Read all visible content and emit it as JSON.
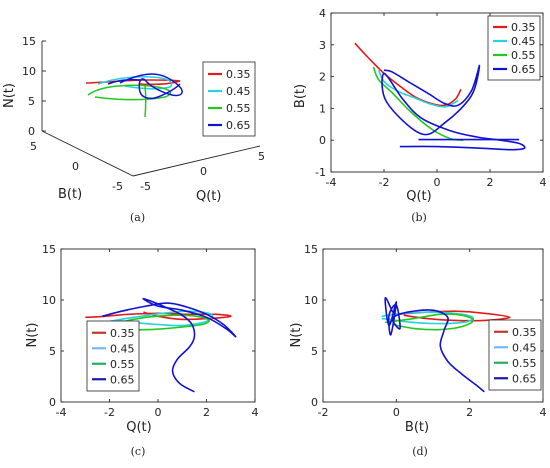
{
  "colors": {
    "s035": "#e31a1c",
    "s045": "#22d3e0",
    "s055": "#22c81e",
    "s065": "#1111d4",
    "s035c": "#c0392b",
    "s045c": "#74b9ff",
    "s055c": "#27ae60",
    "s065c": "#1a1aaa"
  },
  "chart_data": [
    {
      "id": "a",
      "type": "line",
      "projection": "3d",
      "caption": "(a)",
      "xlabel": "B(t)",
      "ylabel": "Q(t)",
      "zlabel": "N(t)",
      "z_ticks": [
        "0",
        "5",
        "10",
        "15"
      ],
      "b_ticks": [
        "5",
        "0",
        "-5"
      ],
      "q_ticks": [
        "-5",
        "0",
        "5"
      ],
      "series": [
        {
          "name": "0.35",
          "color": "s035"
        },
        {
          "name": "0.45",
          "color": "s045"
        },
        {
          "name": "0.55",
          "color": "s055"
        },
        {
          "name": "0.65",
          "color": "s065"
        }
      ]
    },
    {
      "id": "b",
      "type": "line",
      "caption": "(b)",
      "xlabel": "Q(t)",
      "ylabel": "B(t)",
      "xlim": [
        -4,
        4
      ],
      "ylim": [
        -1,
        4
      ],
      "xticks": [
        "-4",
        "-2",
        "0",
        "2",
        "4"
      ],
      "yticks": [
        "-1",
        "0",
        "1",
        "2",
        "3",
        "4"
      ],
      "series": [
        {
          "name": "0.35",
          "color": "s035",
          "x": [
            -3.1,
            -2.6,
            -2.0,
            -1.4,
            -0.8,
            -0.2,
            0.3,
            0.7,
            0.9
          ],
          "y": [
            3.05,
            2.6,
            2.1,
            1.7,
            1.35,
            1.15,
            1.1,
            1.3,
            1.6
          ]
        },
        {
          "name": "0.45",
          "color": "s045",
          "x": [
            -2.2,
            -2.0,
            -1.5,
            -0.9,
            -0.3,
            0.3,
            0.8
          ],
          "y": [
            2.2,
            1.85,
            1.55,
            1.35,
            1.15,
            1.05,
            1.25
          ]
        },
        {
          "name": "0.55",
          "color": "s055",
          "x": [
            -2.4,
            -2.2,
            -1.7,
            -1.0,
            -0.2,
            0.5,
            1.0
          ],
          "y": [
            2.3,
            1.9,
            1.5,
            0.9,
            0.35,
            0.05,
            0.0
          ]
        },
        {
          "name": "0.65",
          "color": "s065",
          "x": [
            -2.0,
            -1.7,
            -1.0,
            -0.3,
            0.3,
            0.8,
            1.3,
            1.6,
            1.3,
            0.3,
            -0.6,
            -1.9,
            -2.0,
            -1.3,
            -0.6,
            0.5,
            1.5,
            2.4,
            3.1,
            3.3,
            2.8,
            1.6,
            0.0,
            -1.4
          ],
          "y": [
            2.2,
            2.15,
            1.8,
            1.45,
            1.15,
            1.1,
            1.55,
            2.35,
            1.4,
            0.55,
            0.2,
            1.2,
            2.1,
            1.3,
            0.7,
            0.3,
            0.1,
            0.0,
            -0.1,
            -0.25,
            -0.3,
            -0.25,
            -0.2,
            -0.2
          ]
        }
      ],
      "extra_segment": {
        "color": "s065",
        "x": [
          -0.7,
          3.1
        ],
        "y": [
          0.02,
          0.02
        ]
      }
    },
    {
      "id": "c",
      "type": "line",
      "caption": "(c)",
      "xlabel": "Q(t)",
      "ylabel": "N(t)",
      "xlim": [
        -4,
        4
      ],
      "ylim": [
        0,
        15
      ],
      "xticks": [
        "-4",
        "-2",
        "0",
        "2",
        "4"
      ],
      "yticks": [
        "0",
        "5",
        "10",
        "15"
      ],
      "legend_colors": [
        "s035c",
        "s045c",
        "s055c",
        "s065c"
      ],
      "series": [
        {
          "name": "0.35",
          "color": "s035",
          "x": [
            -3.0,
            -2.2,
            -1.2,
            0.0,
            1.2,
            2.4,
            3.0,
            2.2,
            1.0,
            0.0,
            -0.6
          ],
          "y": [
            8.3,
            8.4,
            8.6,
            8.7,
            8.6,
            8.6,
            8.4,
            8.2,
            8.1,
            8.4,
            8.8
          ]
        },
        {
          "name": "0.45",
          "color": "s045",
          "x": [
            -2.0,
            -1.0,
            0.2,
            1.3,
            2.2,
            2.0,
            1.0,
            0.0,
            -1.0,
            -1.6
          ],
          "y": [
            7.9,
            8.3,
            8.7,
            8.9,
            8.6,
            7.9,
            7.5,
            7.6,
            7.8,
            8.0
          ]
        },
        {
          "name": "0.55",
          "color": "s055",
          "x": [
            -2.4,
            -1.6,
            -0.5,
            0.6,
            1.6,
            2.1,
            1.8,
            0.8,
            -0.3,
            -1.2,
            -2.0
          ],
          "y": [
            7.3,
            7.8,
            8.3,
            8.5,
            8.4,
            8.0,
            7.6,
            7.3,
            7.1,
            7.1,
            7.3
          ]
        },
        {
          "name": "0.65",
          "color": "s065",
          "x": [
            -2.3,
            -1.5,
            -0.5,
            0.4,
            1.2,
            2.0,
            2.7,
            3.2,
            2.8,
            2.0,
            1.0,
            0.0,
            -0.6,
            -0.3,
            0.4,
            1.0,
            1.4,
            1.5,
            1.3,
            0.8,
            0.6,
            0.9,
            1.5
          ],
          "y": [
            8.4,
            8.9,
            9.4,
            9.7,
            9.3,
            8.6,
            7.6,
            6.4,
            7.2,
            8.3,
            9.0,
            9.4,
            10.1,
            9.9,
            9.2,
            8.5,
            7.6,
            6.4,
            5.4,
            4.2,
            3.0,
            1.8,
            1.0
          ]
        }
      ]
    },
    {
      "id": "d",
      "type": "line",
      "caption": "(d)",
      "xlabel": "B(t)",
      "ylabel": "N(t)",
      "xlim": [
        -2,
        4
      ],
      "ylim": [
        0,
        15
      ],
      "xticks": [
        "-2",
        "0",
        "2",
        "4"
      ],
      "yticks": [
        "0",
        "5",
        "10",
        "15"
      ],
      "legend_colors": [
        "s035c",
        "s045c",
        "s055c",
        "s065c"
      ],
      "series": [
        {
          "name": "0.35",
          "color": "s035",
          "x": [
            0.0,
            0.8,
            1.6,
            2.4,
            3.1,
            2.4,
            1.6,
            0.8,
            0.2
          ],
          "y": [
            8.6,
            8.8,
            8.9,
            8.7,
            8.3,
            8.0,
            8.0,
            8.2,
            8.5
          ]
        },
        {
          "name": "0.45",
          "color": "s045",
          "x": [
            -0.4,
            0.2,
            1.0,
            1.8,
            2.1,
            1.8,
            1.0,
            0.2,
            -0.4
          ],
          "y": [
            8.4,
            8.7,
            8.8,
            8.6,
            8.2,
            7.8,
            7.7,
            7.9,
            8.2
          ]
        },
        {
          "name": "0.55",
          "color": "s055",
          "x": [
            -0.3,
            0.5,
            1.2,
            1.8,
            2.1,
            1.8,
            1.2,
            0.5,
            -0.1
          ],
          "y": [
            7.8,
            8.2,
            8.6,
            8.5,
            8.0,
            7.4,
            7.1,
            7.2,
            7.6
          ]
        },
        {
          "name": "0.65",
          "color": "s065",
          "x": [
            -0.1,
            -0.3,
            -0.2,
            0.0,
            -0.15,
            -0.2,
            0.0,
            0.1,
            -0.1,
            0.3,
            1.0,
            1.4,
            1.3,
            1.2,
            1.4,
            1.8,
            2.2,
            2.4
          ],
          "y": [
            8.8,
            10.2,
            7.5,
            9.8,
            6.6,
            8.5,
            9.5,
            7.2,
            8.2,
            8.8,
            9.0,
            8.3,
            7.0,
            5.5,
            4.0,
            2.7,
            1.6,
            1.0
          ]
        }
      ]
    }
  ]
}
